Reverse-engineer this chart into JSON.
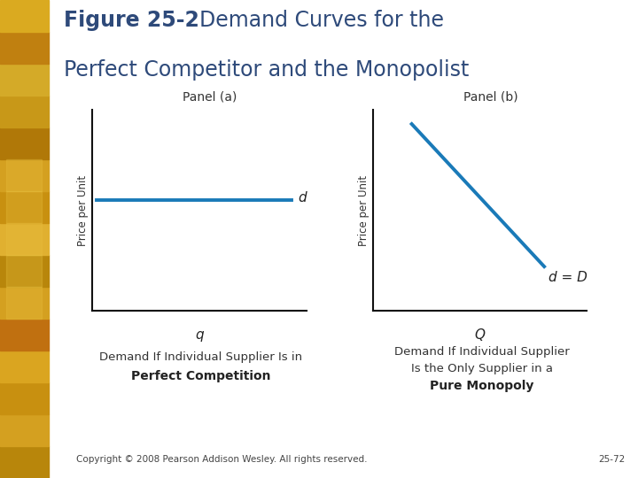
{
  "title_bold_part": "Figure 25-2",
  "title_normal_part": "  Demand Curves for the",
  "title_line2": "Perfect Competitor and the Monopolist",
  "title_color": "#2E4A7A",
  "background_color": "#FFFFFF",
  "strip_color": "#C8A020",
  "panel_a_label": "Panel (a)",
  "panel_b_label": "Panel (b)",
  "panel_a_xlabel": "q",
  "panel_b_xlabel": "Q",
  "panel_a_ylabel": "Price per Unit",
  "panel_b_ylabel": "Price per Unit",
  "panel_a_caption_line1": "Demand If Individual Supplier Is in",
  "panel_a_caption_line2_bold": "Perfect Competition",
  "panel_b_caption_line1": "Demand If Individual Supplier",
  "panel_b_caption_line2": "Is the Only Supplier in a",
  "panel_b_caption_line3_bold": "Pure Monopoly",
  "panel_a_d_label": "d",
  "panel_b_d_label": "d = D",
  "line_color": "#1A7AB8",
  "line_width": 2.8,
  "axis_color": "#111111",
  "footer_left": "Copyright © 2008 Pearson Addison Wesley. All rights reserved.",
  "footer_right": "25-72",
  "footer_color": "#444444",
  "footer_fontsize": 7.5,
  "title_fontsize": 17,
  "panel_label_fontsize": 10,
  "ylabel_fontsize": 8.5,
  "xlabel_fontsize": 11,
  "d_label_fontsize": 11,
  "caption_fontsize": 9.5,
  "caption_bold_fontsize": 10
}
